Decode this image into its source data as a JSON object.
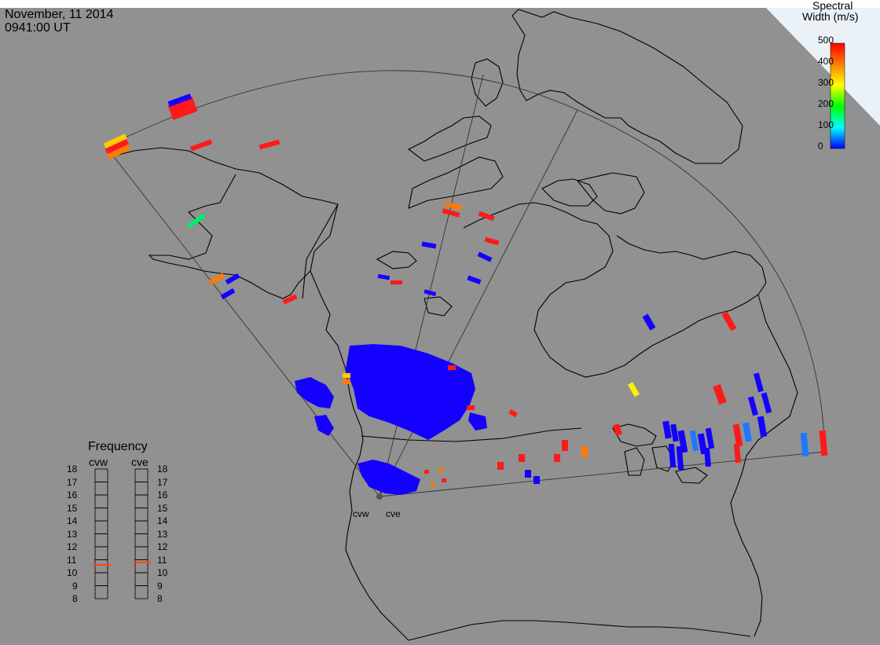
{
  "header": {
    "date": "November, 11 2014",
    "time": "0941:00 UT"
  },
  "colorbar": {
    "title_line1": "Spectral",
    "title_line2": "Width (m/s)",
    "ticks": [
      "500",
      "400",
      "300",
      "200",
      "100",
      "0"
    ],
    "colors": [
      "#ff0000",
      "#ff8000",
      "#ffff00",
      "#00ff00",
      "#00ffff",
      "#0000ff"
    ]
  },
  "frequency": {
    "title": "Frequency",
    "cvw_label": "cvw",
    "cve_label": "cve",
    "scale": [
      "18",
      "17",
      "16",
      "15",
      "14",
      "13",
      "12",
      "11",
      "10",
      "9",
      "8"
    ],
    "cvw_value_mhz": 10.6,
    "cve_value_mhz": 10.8,
    "marker_color": "#ff4400"
  },
  "radars": [
    {
      "name": "cvw"
    },
    {
      "name": "cve"
    }
  ],
  "colors": {
    "background": "#919191",
    "coastline": "#000000",
    "fov_outline": "#333333",
    "scatter_blue": "#1400ff",
    "scatter_red": "#ff1a1a",
    "scatter_orange": "#ff7a00",
    "scatter_yellow": "#ffee00",
    "scatter_green": "#00ee66",
    "scatter_lightblue": "#1e78ff"
  }
}
